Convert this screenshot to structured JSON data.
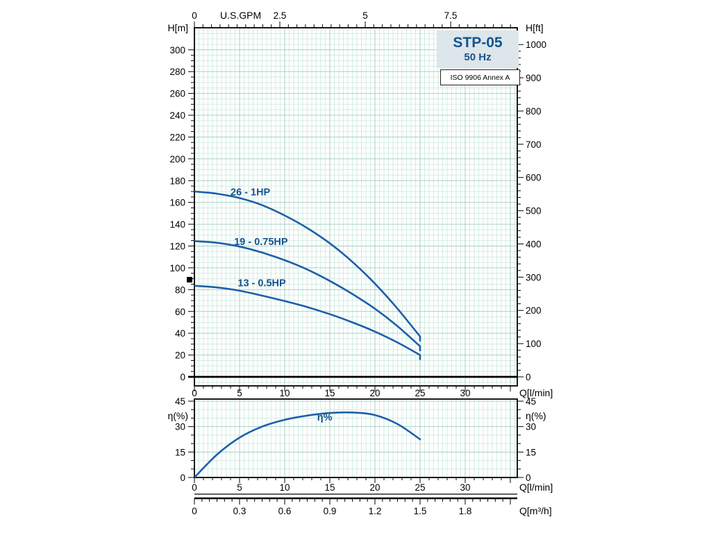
{
  "title_block": {
    "model": "STP-05",
    "frequency": "50 Hz",
    "standard": "ISO 9906 Annex A"
  },
  "colors": {
    "curve": "#1d5fa7",
    "series_label": "#15548f",
    "grid_minor": "#d2ebe2",
    "grid_major": "#a6d2c4",
    "axis": "#000000",
    "title_box_bg": "#dde6ea"
  },
  "chart_data": [
    {
      "type": "line",
      "title": "STP-05 50 Hz head curves",
      "xlabel": "Q[l/min]",
      "xlabel_top": "U.S.GPM",
      "ylabel_left": "H[m]",
      "ylabel_right": "H[ft]",
      "x_ticks": [
        0,
        5,
        10,
        15,
        20,
        25,
        30
      ],
      "x_ticks_top": [
        0,
        2.5,
        5,
        7.5
      ],
      "y_ticks_left": [
        0,
        20,
        40,
        60,
        80,
        100,
        120,
        140,
        160,
        180,
        200,
        220,
        240,
        260,
        280,
        300
      ],
      "y_ticks_right": [
        0,
        100,
        200,
        300,
        400,
        500,
        600,
        700,
        800,
        900,
        1000
      ],
      "xlim": [
        0,
        35.8
      ],
      "ylim": [
        -8,
        320
      ],
      "grid": true,
      "series": [
        {
          "name": "26 - 1HP",
          "x": [
            0,
            2.5,
            5,
            7.5,
            10,
            12.5,
            15,
            17.5,
            20,
            22.5,
            25
          ],
          "y": [
            170,
            168,
            164,
            157.5,
            148,
            136.5,
            122.5,
            105.5,
            85.5,
            62.5,
            37
          ],
          "label_at": [
            4,
            166.5
          ]
        },
        {
          "name": "19 - 0.75HP",
          "x": [
            0,
            2.5,
            5,
            7.5,
            10,
            12.5,
            15,
            17.5,
            20,
            22.5,
            25
          ],
          "y": [
            124.5,
            123,
            119.5,
            114,
            107,
            98.5,
            88,
            76,
            62.5,
            46.5,
            28
          ],
          "label_at": [
            4.4,
            121
          ]
        },
        {
          "name": "13 - 0.5HP",
          "x": [
            0,
            2.5,
            5,
            7.5,
            10,
            12.5,
            15,
            17.5,
            20,
            22.5,
            25
          ],
          "y": [
            83.5,
            82,
            79,
            74.5,
            69.5,
            64,
            57.5,
            50,
            41.5,
            31.5,
            20
          ],
          "label_at": [
            4.8,
            83
          ]
        }
      ]
    },
    {
      "type": "line",
      "title": "Efficiency curve",
      "xlabel": "Q[l/min]",
      "ylabel_left": "η(%)",
      "ylabel_right": "η(%)",
      "x_ticks": [
        0,
        5,
        10,
        15,
        20,
        25,
        30
      ],
      "y_ticks": [
        0,
        15,
        30,
        45
      ],
      "xlim": [
        0,
        35.8
      ],
      "ylim": [
        0,
        46.2
      ],
      "grid": true,
      "series": [
        {
          "name": "η%",
          "x": [
            0,
            2.5,
            5,
            7.5,
            10,
            12.5,
            15,
            17.5,
            20,
            22.5,
            25
          ],
          "y": [
            0,
            13.5,
            23.5,
            30,
            34,
            36.5,
            38,
            38.3,
            36.8,
            31.5,
            22.5
          ],
          "label_at": [
            13.6,
            33.5
          ]
        }
      ]
    },
    {
      "type": "axis",
      "xlabel": "Q[m³/h]",
      "x_ticks": [
        0,
        0.3,
        0.6,
        0.9,
        1.2,
        1.5,
        1.8
      ]
    }
  ]
}
